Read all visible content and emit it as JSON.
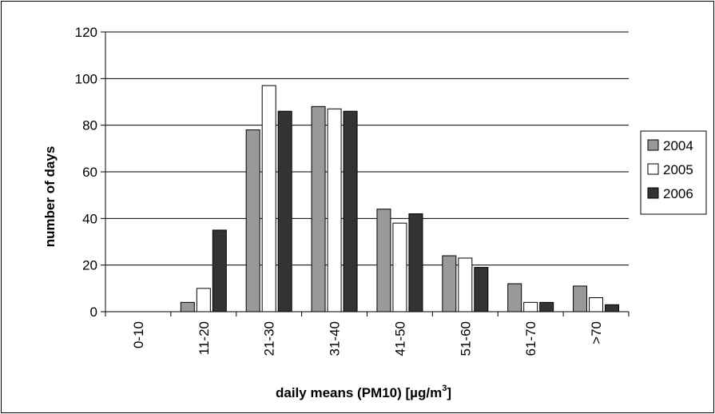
{
  "chart_data": {
    "type": "bar",
    "categories": [
      "0-10",
      "11-20",
      "21-30",
      "31-40",
      "41-50",
      "51-60",
      "61-70",
      ">70"
    ],
    "series": [
      {
        "name": "2004",
        "values": [
          0,
          4,
          78,
          88,
          44,
          24,
          12,
          11
        ],
        "color": "#999999"
      },
      {
        "name": "2005",
        "values": [
          0,
          10,
          97,
          87,
          38,
          23,
          4,
          6
        ],
        "color": "#ffffff"
      },
      {
        "name": "2006",
        "values": [
          0,
          35,
          86,
          86,
          42,
          19,
          4,
          3
        ],
        "color": "#333333"
      }
    ],
    "title": "",
    "xlabel_main": "daily means (PM10)  [µg/m",
    "xlabel_sup": "3",
    "xlabel_end": "]",
    "ylabel": "number of days",
    "ylim": [
      0,
      120
    ],
    "yticks": [
      0,
      20,
      40,
      60,
      80,
      100,
      120
    ],
    "grid": true,
    "legend_position": "right"
  }
}
